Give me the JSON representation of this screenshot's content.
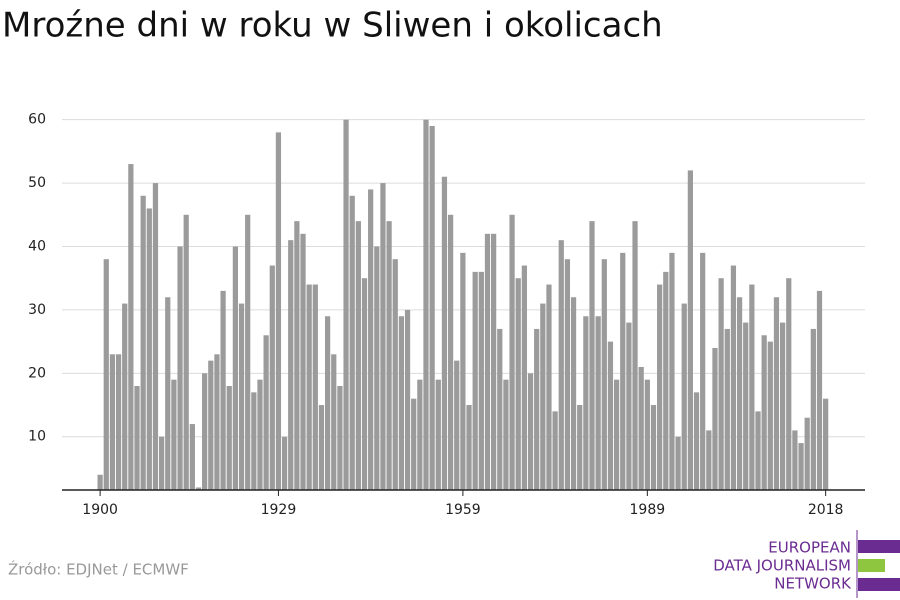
{
  "chart_data": {
    "type": "bar",
    "title": "Mroźne dni w roku w Sliwen i okolicach",
    "x": [
      1900,
      1901,
      1902,
      1903,
      1904,
      1905,
      1906,
      1907,
      1908,
      1909,
      1910,
      1911,
      1912,
      1913,
      1914,
      1915,
      1916,
      1917,
      1918,
      1919,
      1920,
      1921,
      1922,
      1923,
      1924,
      1925,
      1926,
      1927,
      1928,
      1929,
      1930,
      1931,
      1932,
      1933,
      1934,
      1935,
      1936,
      1937,
      1938,
      1939,
      1940,
      1941,
      1942,
      1943,
      1944,
      1945,
      1946,
      1947,
      1948,
      1949,
      1950,
      1951,
      1952,
      1953,
      1954,
      1955,
      1956,
      1957,
      1958,
      1959,
      1960,
      1961,
      1962,
      1963,
      1964,
      1965,
      1966,
      1967,
      1968,
      1969,
      1970,
      1971,
      1972,
      1973,
      1974,
      1975,
      1976,
      1977,
      1978,
      1979,
      1980,
      1981,
      1982,
      1983,
      1984,
      1985,
      1986,
      1987,
      1988,
      1989,
      1990,
      1991,
      1992,
      1993,
      1994,
      1995,
      1996,
      1997,
      1998,
      1999,
      2000,
      2001,
      2002,
      2003,
      2004,
      2005,
      2006,
      2007,
      2008,
      2009,
      2010,
      2011,
      2012,
      2013,
      2014,
      2015,
      2016,
      2017,
      2018
    ],
    "values": [
      4,
      38,
      23,
      23,
      31,
      53,
      18,
      48,
      46,
      50,
      10,
      32,
      19,
      40,
      45,
      12,
      2,
      20,
      22,
      23,
      33,
      18,
      40,
      31,
      45,
      17,
      19,
      26,
      37,
      58,
      10,
      41,
      44,
      42,
      34,
      34,
      15,
      29,
      23,
      18,
      60,
      48,
      44,
      35,
      49,
      40,
      50,
      44,
      38,
      29,
      30,
      16,
      19,
      60,
      59,
      19,
      51,
      45,
      22,
      39,
      15,
      36,
      36,
      42,
      42,
      27,
      19,
      45,
      35,
      37,
      20,
      27,
      31,
      34,
      14,
      41,
      38,
      32,
      15,
      29,
      44,
      29,
      38,
      25,
      19,
      39,
      28,
      44,
      21,
      19,
      15,
      34,
      36,
      39,
      10,
      31,
      52,
      17,
      39,
      11,
      24,
      35,
      27,
      37,
      32,
      28,
      34,
      14,
      26,
      25,
      32,
      28,
      35,
      11,
      9,
      13,
      27,
      33,
      16
    ],
    "color": "#9b9b9b",
    "xlim": [
      1893.8,
      2024.4
    ],
    "xticks": [
      1900,
      1929,
      1959,
      1989,
      2018
    ],
    "ylim": [
      1.6,
      62
    ],
    "yticks": [
      10,
      20,
      30,
      40,
      50,
      60
    ],
    "grid": true,
    "source": "Źródło: EDJNet / ECMWF",
    "logo": [
      "EUROPEAN",
      "DATA JOURNALISM",
      "NETWORK"
    ]
  }
}
